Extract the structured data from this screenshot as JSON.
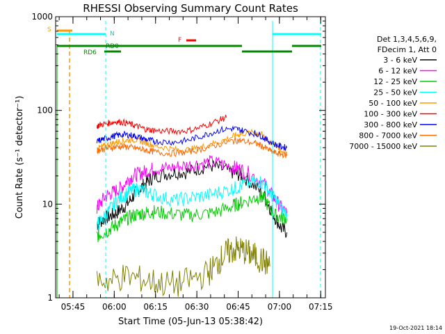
{
  "chart_data": {
    "type": "line",
    "title": "RHESSI Observing Summary Count Rates",
    "xlabel": "Start Time (05-Jun-13 05:38:42)",
    "ylabel": "Count Rate (s⁻¹ detector⁻¹)",
    "yscale": "log",
    "ylim": [
      1,
      1000
    ],
    "xlim_minutes": [
      0,
      98
    ],
    "x_ticks": [
      {
        "label": "05:45",
        "minute": 6.3
      },
      {
        "label": "06:00",
        "minute": 21.3
      },
      {
        "label": "06:15",
        "minute": 36.3
      },
      {
        "label": "06:30",
        "minute": 51.3
      },
      {
        "label": "06:45",
        "minute": 66.3
      },
      {
        "label": "07:00",
        "minute": 81.3
      },
      {
        "label": "07:15",
        "minute": 96.3
      }
    ],
    "y_ticks": [
      {
        "label": "1",
        "value": 1
      },
      {
        "label": "10",
        "value": 10
      },
      {
        "label": "100",
        "value": 100
      },
      {
        "label": "1000",
        "value": 1000
      }
    ],
    "legend_header": [
      "Det 1,3,4,5,6,9,",
      "FDecim 1, Att 0"
    ],
    "series": [
      {
        "name": "3 - 6 keV",
        "color": "#000000",
        "points": [
          [
            15,
            6
          ],
          [
            16,
            6.5
          ],
          [
            18,
            7
          ],
          [
            20,
            7.5
          ],
          [
            22,
            8
          ],
          [
            24,
            9
          ],
          [
            26,
            10
          ],
          [
            28,
            12
          ],
          [
            30,
            14
          ],
          [
            32,
            16
          ],
          [
            34,
            18
          ],
          [
            36,
            20
          ],
          [
            40,
            21
          ],
          [
            44,
            22
          ],
          [
            48,
            22
          ],
          [
            52,
            24
          ],
          [
            56,
            26
          ],
          [
            60,
            24
          ],
          [
            64,
            22
          ],
          [
            66,
            21
          ],
          [
            68,
            20
          ],
          [
            72,
            16
          ],
          [
            76,
            12
          ],
          [
            78,
            9
          ],
          [
            80,
            7
          ],
          [
            82,
            5.5
          ],
          [
            84,
            5
          ]
        ]
      },
      {
        "name": "6 - 12 keV",
        "color": "#ff00ff",
        "points": [
          [
            15,
            9
          ],
          [
            16,
            10
          ],
          [
            18,
            12
          ],
          [
            20,
            13
          ],
          [
            22,
            14
          ],
          [
            24,
            15
          ],
          [
            26,
            18
          ],
          [
            28,
            20
          ],
          [
            30,
            21
          ],
          [
            32,
            22
          ],
          [
            34,
            23
          ],
          [
            36,
            24
          ],
          [
            40,
            24
          ],
          [
            44,
            25
          ],
          [
            48,
            26
          ],
          [
            52,
            27
          ],
          [
            56,
            28
          ],
          [
            60,
            27
          ],
          [
            64,
            25
          ],
          [
            66,
            24
          ],
          [
            68,
            23
          ],
          [
            72,
            20
          ],
          [
            76,
            16
          ],
          [
            78,
            13
          ],
          [
            80,
            11
          ],
          [
            82,
            9
          ],
          [
            84,
            8
          ]
        ]
      },
      {
        "name": "12 - 25 keV",
        "color": "#00cc00",
        "points": [
          [
            15,
            4.5
          ],
          [
            16,
            4.8
          ],
          [
            18,
            5
          ],
          [
            20,
            5.5
          ],
          [
            22,
            6
          ],
          [
            24,
            6.5
          ],
          [
            26,
            7
          ],
          [
            28,
            7.5
          ],
          [
            30,
            7.8
          ],
          [
            32,
            8
          ],
          [
            34,
            8.2
          ],
          [
            36,
            8.3
          ],
          [
            40,
            8
          ],
          [
            44,
            7.8
          ],
          [
            48,
            7.6
          ],
          [
            52,
            7.8
          ],
          [
            56,
            8
          ],
          [
            60,
            8.5
          ],
          [
            64,
            9.5
          ],
          [
            66,
            10
          ],
          [
            68,
            10.5
          ],
          [
            72,
            11.5
          ],
          [
            74,
            12
          ],
          [
            76,
            11
          ],
          [
            78,
            9
          ],
          [
            80,
            7.5
          ],
          [
            82,
            7.2
          ],
          [
            84,
            7
          ]
        ]
      },
      {
        "name": "25 - 50 keV",
        "color": "#00ffff",
        "points": [
          [
            15,
            6
          ],
          [
            16,
            6.5
          ],
          [
            18,
            7.5
          ],
          [
            20,
            9
          ],
          [
            22,
            10.5
          ],
          [
            24,
            12
          ],
          [
            26,
            13
          ],
          [
            28,
            14
          ],
          [
            30,
            14.5
          ],
          [
            32,
            14
          ],
          [
            34,
            13
          ],
          [
            36,
            12.5
          ],
          [
            40,
            11.5
          ],
          [
            44,
            11
          ],
          [
            48,
            11.5
          ],
          [
            52,
            12
          ],
          [
            56,
            12.5
          ],
          [
            60,
            13.5
          ],
          [
            64,
            14.5
          ],
          [
            66,
            15
          ],
          [
            68,
            16
          ],
          [
            72,
            17
          ],
          [
            74,
            17.5
          ],
          [
            76,
            16
          ],
          [
            78,
            13
          ],
          [
            80,
            11
          ],
          [
            82,
            9
          ],
          [
            84,
            8
          ]
        ]
      },
      {
        "name": "50 - 100 keV",
        "color": "#ff9900",
        "points": [
          [
            15,
            38
          ],
          [
            16,
            40
          ],
          [
            18,
            42
          ],
          [
            20,
            44
          ],
          [
            22,
            46
          ],
          [
            24,
            47
          ],
          [
            26,
            48
          ],
          [
            28,
            49
          ],
          [
            30,
            48
          ],
          [
            32,
            46
          ],
          [
            34,
            44
          ],
          [
            36,
            42
          ],
          [
            40,
            40
          ],
          [
            44,
            38
          ],
          [
            48,
            38
          ],
          [
            52,
            40
          ],
          [
            56,
            43
          ],
          [
            60,
            47
          ],
          [
            64,
            52
          ],
          [
            66,
            55
          ],
          [
            68,
            57
          ],
          [
            72,
            58
          ],
          [
            74,
            57
          ],
          [
            76,
            52
          ],
          [
            78,
            46
          ],
          [
            80,
            42
          ],
          [
            82,
            38
          ],
          [
            84,
            36
          ]
        ]
      },
      {
        "name": "100 - 300 keV",
        "color": "#ff0000",
        "points": [
          [
            15,
            68
          ],
          [
            16,
            70
          ],
          [
            18,
            72
          ],
          [
            20,
            74
          ],
          [
            22,
            76
          ],
          [
            24,
            75
          ],
          [
            26,
            73
          ],
          [
            28,
            70
          ],
          [
            30,
            67
          ],
          [
            32,
            64
          ],
          [
            34,
            62
          ],
          [
            36,
            61
          ],
          [
            40,
            60
          ],
          [
            44,
            60
          ],
          [
            48,
            61
          ],
          [
            52,
            65
          ],
          [
            56,
            72
          ],
          [
            60,
            80
          ],
          [
            62,
            84
          ]
        ]
      },
      {
        "name": "300 - 800 keV",
        "color": "#0000ff",
        "points": [
          [
            15,
            46
          ],
          [
            16,
            48
          ],
          [
            18,
            50
          ],
          [
            20,
            52
          ],
          [
            22,
            54
          ],
          [
            24,
            55
          ],
          [
            26,
            55
          ],
          [
            28,
            54
          ],
          [
            30,
            52
          ],
          [
            32,
            50
          ],
          [
            34,
            48
          ],
          [
            36,
            47
          ],
          [
            40,
            46
          ],
          [
            44,
            46
          ],
          [
            48,
            48
          ],
          [
            52,
            52
          ],
          [
            56,
            57
          ],
          [
            60,
            62
          ],
          [
            64,
            64
          ],
          [
            66,
            63
          ],
          [
            68,
            61
          ],
          [
            72,
            57
          ],
          [
            74,
            55
          ],
          [
            76,
            50
          ],
          [
            78,
            46
          ],
          [
            80,
            43
          ],
          [
            82,
            41
          ],
          [
            84,
            40
          ]
        ]
      },
      {
        "name": "800 - 7000 keV",
        "color": "#ff6600",
        "points": [
          [
            15,
            37
          ],
          [
            16,
            38
          ],
          [
            18,
            39
          ],
          [
            20,
            40
          ],
          [
            22,
            41
          ],
          [
            24,
            41
          ],
          [
            26,
            41
          ],
          [
            28,
            40
          ],
          [
            30,
            39
          ],
          [
            32,
            38
          ],
          [
            34,
            37
          ],
          [
            36,
            36
          ],
          [
            40,
            35
          ],
          [
            44,
            35
          ],
          [
            48,
            36
          ],
          [
            52,
            38
          ],
          [
            56,
            41
          ],
          [
            60,
            44
          ],
          [
            64,
            47
          ],
          [
            66,
            48
          ],
          [
            68,
            47
          ],
          [
            72,
            45
          ],
          [
            74,
            43
          ],
          [
            76,
            40
          ],
          [
            78,
            37
          ],
          [
            80,
            35
          ],
          [
            82,
            34
          ],
          [
            84,
            33
          ]
        ]
      },
      {
        "name": "7000 - 15000 keV",
        "color": "#808000",
        "points": [
          [
            15,
            1.6
          ],
          [
            20,
            1.5
          ],
          [
            25,
            1.7
          ],
          [
            30,
            1.6
          ],
          [
            35,
            1.5
          ],
          [
            40,
            1.4
          ],
          [
            45,
            1.4
          ],
          [
            50,
            1.6
          ],
          [
            55,
            1.8
          ],
          [
            58,
            2.2
          ],
          [
            60,
            2.6
          ],
          [
            62,
            3.0
          ],
          [
            64,
            3.2
          ],
          [
            66,
            3.3
          ],
          [
            68,
            3.2
          ],
          [
            70,
            3.0
          ],
          [
            72,
            2.8
          ],
          [
            74,
            2.6
          ],
          [
            76,
            2.4
          ],
          [
            78,
            2.2
          ]
        ]
      }
    ],
    "annotations": {
      "flag_S": "S",
      "flag_N": "N",
      "flag_F": "F",
      "flag_RD0": "RD0",
      "flag_RD6": "RD6"
    },
    "colors": {
      "saa": "#ff9900",
      "night": "#00ffff",
      "flare": "#ff0000",
      "decimation": "#00aa00"
    }
  },
  "timestamp": "19-Oct-2021 18:14"
}
